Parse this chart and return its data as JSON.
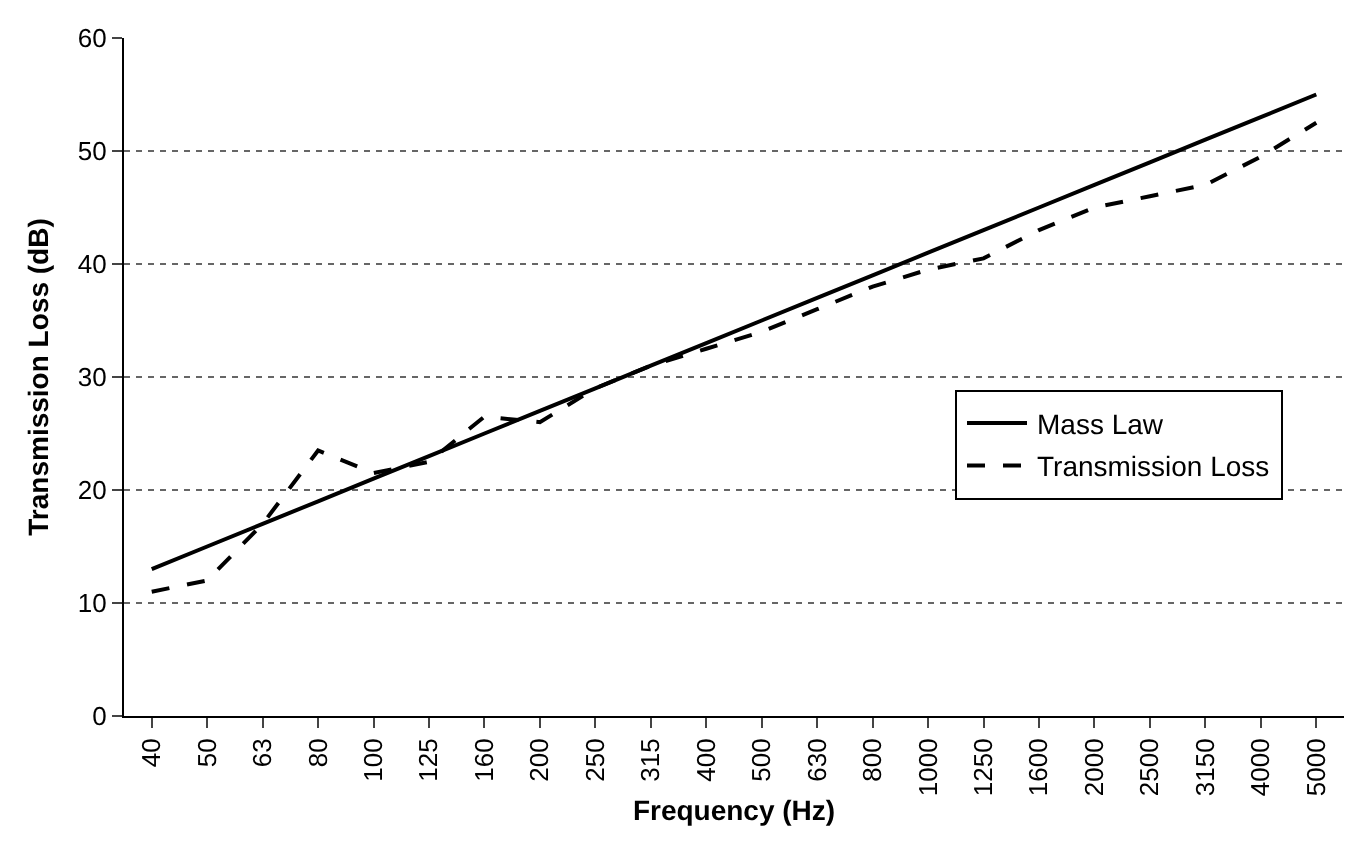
{
  "chart_data": {
    "type": "line",
    "xlabel": "Frequency (Hz)",
    "ylabel": "Transmission Loss (dB)",
    "categories": [
      "40",
      "50",
      "63",
      "80",
      "100",
      "125",
      "160",
      "200",
      "250",
      "315",
      "400",
      "500",
      "630",
      "800",
      "1000",
      "1250",
      "1600",
      "2000",
      "2500",
      "3150",
      "4000",
      "5000"
    ],
    "series": [
      {
        "name": "Mass Law",
        "color": "#000000",
        "line_style": "solid",
        "values": [
          13,
          15,
          17,
          19,
          21,
          23,
          25,
          27,
          29,
          31,
          33,
          35,
          37,
          39,
          41,
          43,
          45,
          47,
          49,
          51,
          53,
          55
        ]
      },
      {
        "name": "Transmission Loss",
        "color": "#000000",
        "line_style": "dashed",
        "values": [
          11,
          12,
          17,
          23.5,
          21.5,
          22.5,
          26.5,
          26,
          29,
          31,
          32.5,
          34,
          36,
          38,
          39.5,
          40.5,
          43,
          45,
          46,
          47,
          49.5,
          52.5
        ]
      }
    ],
    "ylim": [
      0,
      60
    ],
    "yticks": [
      0,
      10,
      20,
      30,
      40,
      50,
      60
    ],
    "grid": "y",
    "legend": "right",
    "marker": "none"
  }
}
